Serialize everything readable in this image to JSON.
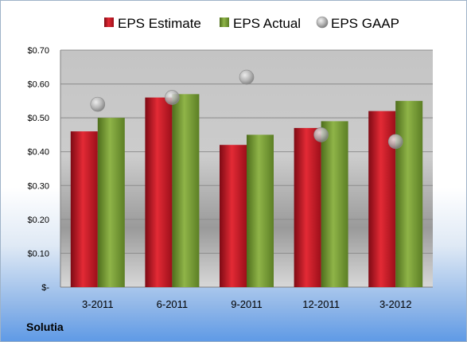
{
  "company": "Solutia",
  "colors": {
    "estimate": "#c8102e",
    "actual": "#6f9a2f",
    "gaap": "#a8a8a8"
  },
  "chart_data": {
    "type": "bar",
    "categories": [
      "3-2011",
      "6-2011",
      "9-2011",
      "12-2011",
      "3-2012"
    ],
    "series": [
      {
        "name": "EPS Estimate",
        "kind": "bar",
        "values": [
          0.46,
          0.56,
          0.42,
          0.47,
          0.52
        ]
      },
      {
        "name": "EPS Actual",
        "kind": "bar",
        "values": [
          0.5,
          0.57,
          0.45,
          0.49,
          0.55
        ]
      },
      {
        "name": "EPS GAAP",
        "kind": "scatter",
        "values": [
          0.54,
          0.56,
          0.62,
          0.45,
          0.43
        ]
      }
    ],
    "ylim": [
      0,
      0.7
    ],
    "yticks": [
      0,
      0.1,
      0.2,
      0.3,
      0.4,
      0.5,
      0.6,
      0.7
    ],
    "ytick_labels": [
      "$-",
      "$0.10",
      "$0.20",
      "$0.30",
      "$0.40",
      "$0.50",
      "$0.60",
      "$0.70"
    ],
    "grid": true,
    "legend": "top"
  }
}
